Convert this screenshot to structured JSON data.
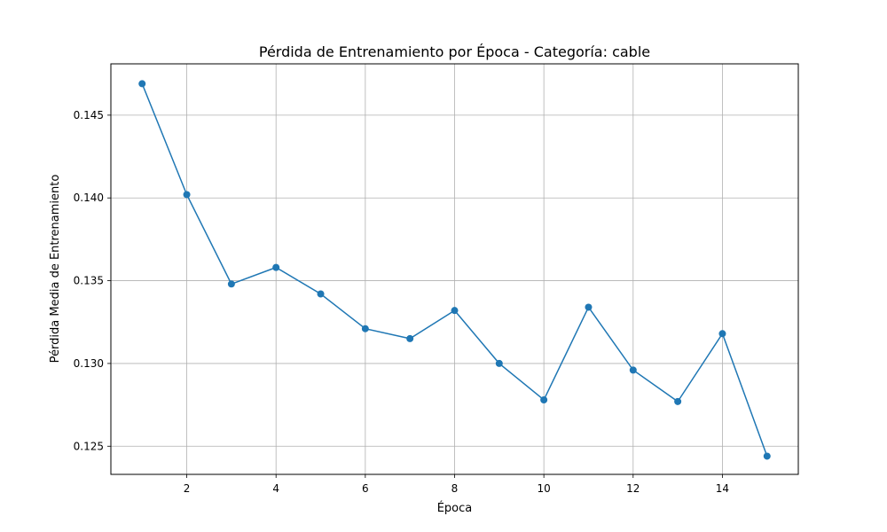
{
  "chart_data": {
    "type": "line",
    "title": "Pérdida de Entrenamiento por Época - Categoría: cable",
    "xlabel": "Época",
    "ylabel": "Pérdida Media de Entrenamiento",
    "x": [
      1,
      2,
      3,
      4,
      5,
      6,
      7,
      8,
      9,
      10,
      11,
      12,
      13,
      14,
      15
    ],
    "series": [
      {
        "values": [
          0.1469,
          0.1402,
          0.1348,
          0.1358,
          0.1342,
          0.1321,
          0.1315,
          0.1332,
          0.13,
          0.1278,
          0.1334,
          0.1296,
          0.1277,
          0.1318,
          0.1244
        ],
        "color": "#1f77b4",
        "marker": "circle"
      }
    ],
    "xlim": [
      0.3,
      15.7
    ],
    "ylim": [
      0.1233,
      0.1481
    ],
    "xticks": [
      2,
      4,
      6,
      8,
      10,
      12,
      14
    ],
    "yticks": [
      0.125,
      0.13,
      0.135,
      0.14,
      0.145
    ],
    "xtick_labels": [
      "2",
      "4",
      "6",
      "8",
      "10",
      "12",
      "14"
    ],
    "ytick_labels": [
      "0.125",
      "0.130",
      "0.135",
      "0.140",
      "0.145"
    ],
    "grid": true,
    "legend": "none"
  }
}
